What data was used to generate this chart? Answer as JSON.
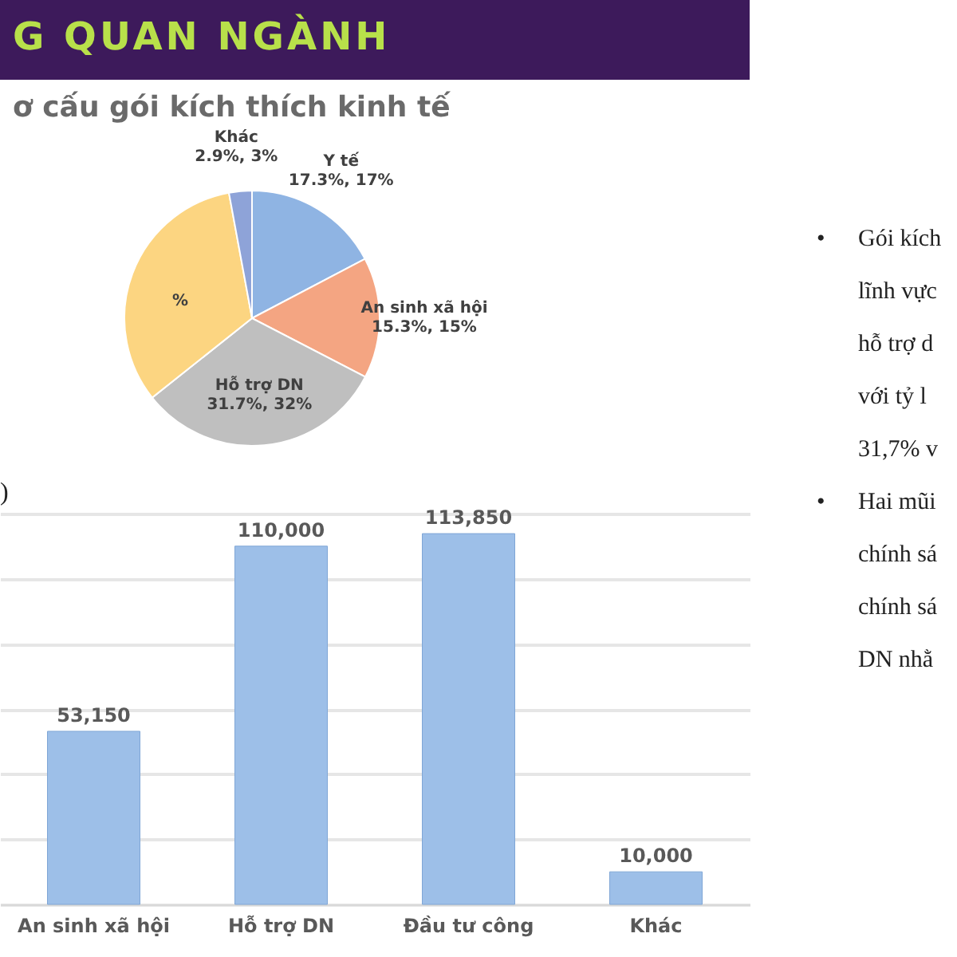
{
  "chart_data": [
    {
      "type": "pie",
      "title": "ơ cấu gói kích thích kinh tế",
      "categories": [
        "Y tế",
        "An sinh xã hội",
        "Hỗ trợ DN",
        null,
        "Khác"
      ],
      "values": [
        17.3,
        15.3,
        31.7,
        32.8,
        2.9
      ],
      "colors": [
        "#8fb4e3",
        "#f4a582",
        "#bfbfbf",
        "#fcd581",
        "#8ea3d8"
      ],
      "value_labels": [
        "17.3%, 17%",
        "15.3%, 15%",
        "31.7%, 32%",
        "%",
        "2.9%, 3%"
      ]
    },
    {
      "type": "bar",
      "title": ")",
      "categories": [
        "An sinh xã hội",
        "Hỗ trợ DN",
        "Đầu tư công",
        "Khác"
      ],
      "values": [
        53150,
        110000,
        113850,
        10000
      ],
      "color": "#9dbfe8",
      "value_labels": [
        "53,150",
        "110,000",
        "113,850",
        "10,000"
      ],
      "grid": "y",
      "tick_labels": "x"
    },
    {
      "type": "other",
      "title": "G QUAN NGÀNH",
      "annotations": [
        "•",
        "Gói kích",
        "lĩnh vực",
        "hỗ trợ d",
        "với tỷ l",
        "31,7% v",
        "•",
        "Hai mũi",
        "chính sá",
        "chính sá",
        "DN nhằ"
      ]
    }
  ]
}
